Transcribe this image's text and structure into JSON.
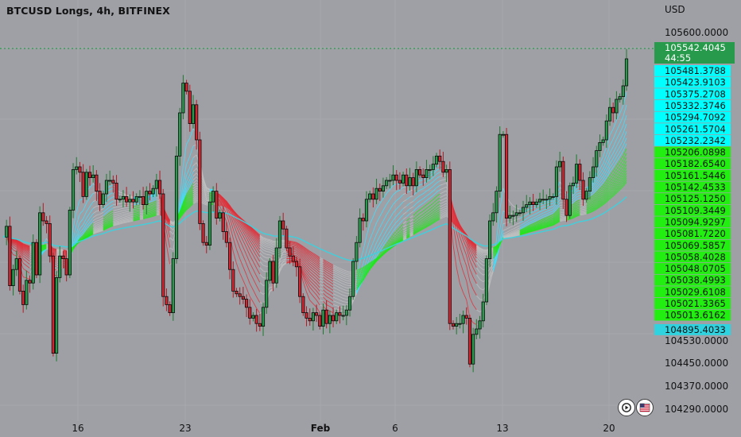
{
  "title": "BTCUSD Longs, 4h, BITFINEX",
  "currency_label": "USD",
  "chart_data": {
    "type": "candlestick",
    "symbol": "BTCUSD Longs",
    "timeframe": "4h",
    "exchange": "BITFINEX",
    "y_axis": {
      "range": [
        104260,
        105660
      ],
      "ticks": [
        "105600.0000",
        "104530.0000",
        "104450.0000",
        "104370.0000",
        "104290.0000"
      ]
    },
    "x_axis": {
      "ticks": [
        "16",
        "23",
        "Feb",
        "6",
        "13",
        "20"
      ]
    },
    "last_price": {
      "value": "105542.4045",
      "countdown": "44:55",
      "color": "#279a4b"
    },
    "ribbon_labels": [
      {
        "value": "105481.3788",
        "color": "#00ffff"
      },
      {
        "value": "105423.9103",
        "color": "#00ffff"
      },
      {
        "value": "105375.2708",
        "color": "#00ffff"
      },
      {
        "value": "105332.3746",
        "color": "#00ffff"
      },
      {
        "value": "105294.7092",
        "color": "#00ffff"
      },
      {
        "value": "105261.5704",
        "color": "#00ffff"
      },
      {
        "value": "105232.2342",
        "color": "#00ffff"
      },
      {
        "value": "105206.0898",
        "color": "#22ee11"
      },
      {
        "value": "105182.6540",
        "color": "#22ee11"
      },
      {
        "value": "105161.5446",
        "color": "#22ee11"
      },
      {
        "value": "105142.4533",
        "color": "#22ee11"
      },
      {
        "value": "105125.1250",
        "color": "#22ee11"
      },
      {
        "value": "105109.3449",
        "color": "#22ee11"
      },
      {
        "value": "105094.9297",
        "color": "#22ee11"
      },
      {
        "value": "105081.7220",
        "color": "#22ee11"
      },
      {
        "value": "105069.5857",
        "color": "#22ee11"
      },
      {
        "value": "105058.4028",
        "color": "#22ee11"
      },
      {
        "value": "105048.0705",
        "color": "#22ee11"
      },
      {
        "value": "105038.4993",
        "color": "#22ee11"
      },
      {
        "value": "105029.6108",
        "color": "#22ee11"
      },
      {
        "value": "105021.3365",
        "color": "#22ee11"
      },
      {
        "value": "105013.6162",
        "color": "#22ee11"
      },
      {
        "value": "104895.4033",
        "color": "#2fd3e0"
      }
    ],
    "price_path": [
      104900,
      104940,
      104720,
      104780,
      104820,
      104700,
      104650,
      104740,
      104730,
      104880,
      104760,
      104990,
      104960,
      104950,
      104830,
      104470,
      104750,
      104830,
      104820,
      104760,
      105000,
      105150,
      105160,
      105140,
      105050,
      105140,
      105120,
      105130,
      105070,
      105020,
      105060,
      105110,
      105110,
      105100,
      105040,
      105040,
      105050,
      105030,
      105040,
      105030,
      105050,
      105050,
      105020,
      105070,
      105060,
      105080,
      105110,
      105060,
      104680,
      104650,
      104620,
      104820,
      105200,
      105360,
      105470,
      105440,
      105320,
      105390,
      105260,
      104950,
      104880,
      104870,
      105030,
      105070,
      104970,
      104990,
      104920,
      104880,
      104780,
      104700,
      104690,
      104680,
      104670,
      104640,
      104600,
      104610,
      104580,
      104570,
      104640,
      104740,
      104810,
      104730,
      104860,
      104960,
      104930,
      104860,
      104830,
      104810,
      104790,
      104680,
      104620,
      104600,
      104590,
      104620,
      104610,
      104570,
      104630,
      104580,
      104610,
      104590,
      104620,
      104610,
      104610,
      104630,
      104680,
      104810,
      104880,
      104970,
      104960,
      105040,
      105060,
      105040,
      105080,
      105070,
      105090,
      105110,
      105110,
      105130,
      105110,
      105100,
      105130,
      105090,
      105120,
      105090,
      105150,
      105130,
      105120,
      105150,
      105150,
      105170,
      105200,
      105180,
      105140,
      105150,
      104580,
      104570,
      104580,
      104580,
      104610,
      104600,
      104430,
      104540,
      104560,
      104590,
      104660,
      104820,
      104960,
      104990,
      105070,
      105280,
      105280,
      104970,
      104980,
      104980,
      104990,
      104990,
      105010,
      105020,
      105030,
      105020,
      105030,
      105040,
      105040,
      105040,
      105050,
      105050,
      105160,
      105180,
      105040,
      104980,
      105090,
      105100,
      105170,
      105110,
      105040,
      105070,
      105120,
      105160,
      105220,
      105250,
      105260,
      105330,
      105380,
      105360,
      105410,
      105420,
      105460,
      105560
    ]
  }
}
